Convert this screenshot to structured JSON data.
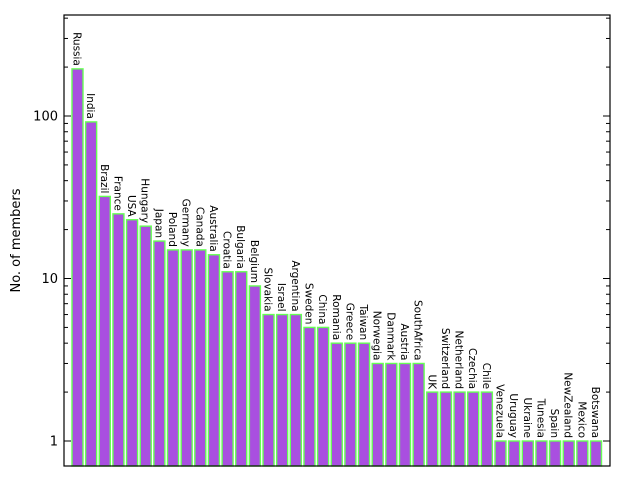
{
  "chart_data": {
    "type": "bar",
    "title": "",
    "xlabel": "",
    "ylabel": "No. of members",
    "yscale": "log",
    "ylim": [
      0.7,
      420
    ],
    "yticks": [
      1,
      10,
      100
    ],
    "ytick_labels": [
      "1",
      "10",
      "100"
    ],
    "grid": false,
    "legend": "none",
    "categories": [
      "Russia",
      "India",
      "Brazil",
      "France",
      "USA",
      "Hungary",
      "Japan",
      "Poland",
      "Germany",
      "Canada",
      "Australia",
      "Croatia",
      "Bulgaria",
      "Belgium",
      "Slovakia",
      "Israel",
      "Argentina",
      "Sweden",
      "China",
      "Romania",
      "Greece",
      "Taiwan",
      "Norwegia",
      "Danmark",
      "Austria",
      "SouthAfrica",
      "UK",
      "Switzerland",
      "Netherland",
      "Czechia",
      "Chile",
      "Venezuela",
      "Uruguay",
      "Ukraine",
      "Tunesia",
      "Spain",
      "NewZealand",
      "Mexico",
      "Botswana"
    ],
    "values": [
      195,
      92,
      32,
      25,
      23,
      21,
      17,
      15,
      15,
      15,
      14,
      11,
      11,
      9,
      6,
      6,
      6,
      5,
      5,
      4,
      4,
      4,
      3,
      3,
      3,
      3,
      2,
      2,
      2,
      2,
      2,
      1,
      1,
      1,
      1,
      1,
      1,
      1,
      1
    ],
    "colors": {
      "bar_fill": "#a94fe0",
      "bar_edge": "#66ff55",
      "axis": "#000000"
    }
  }
}
